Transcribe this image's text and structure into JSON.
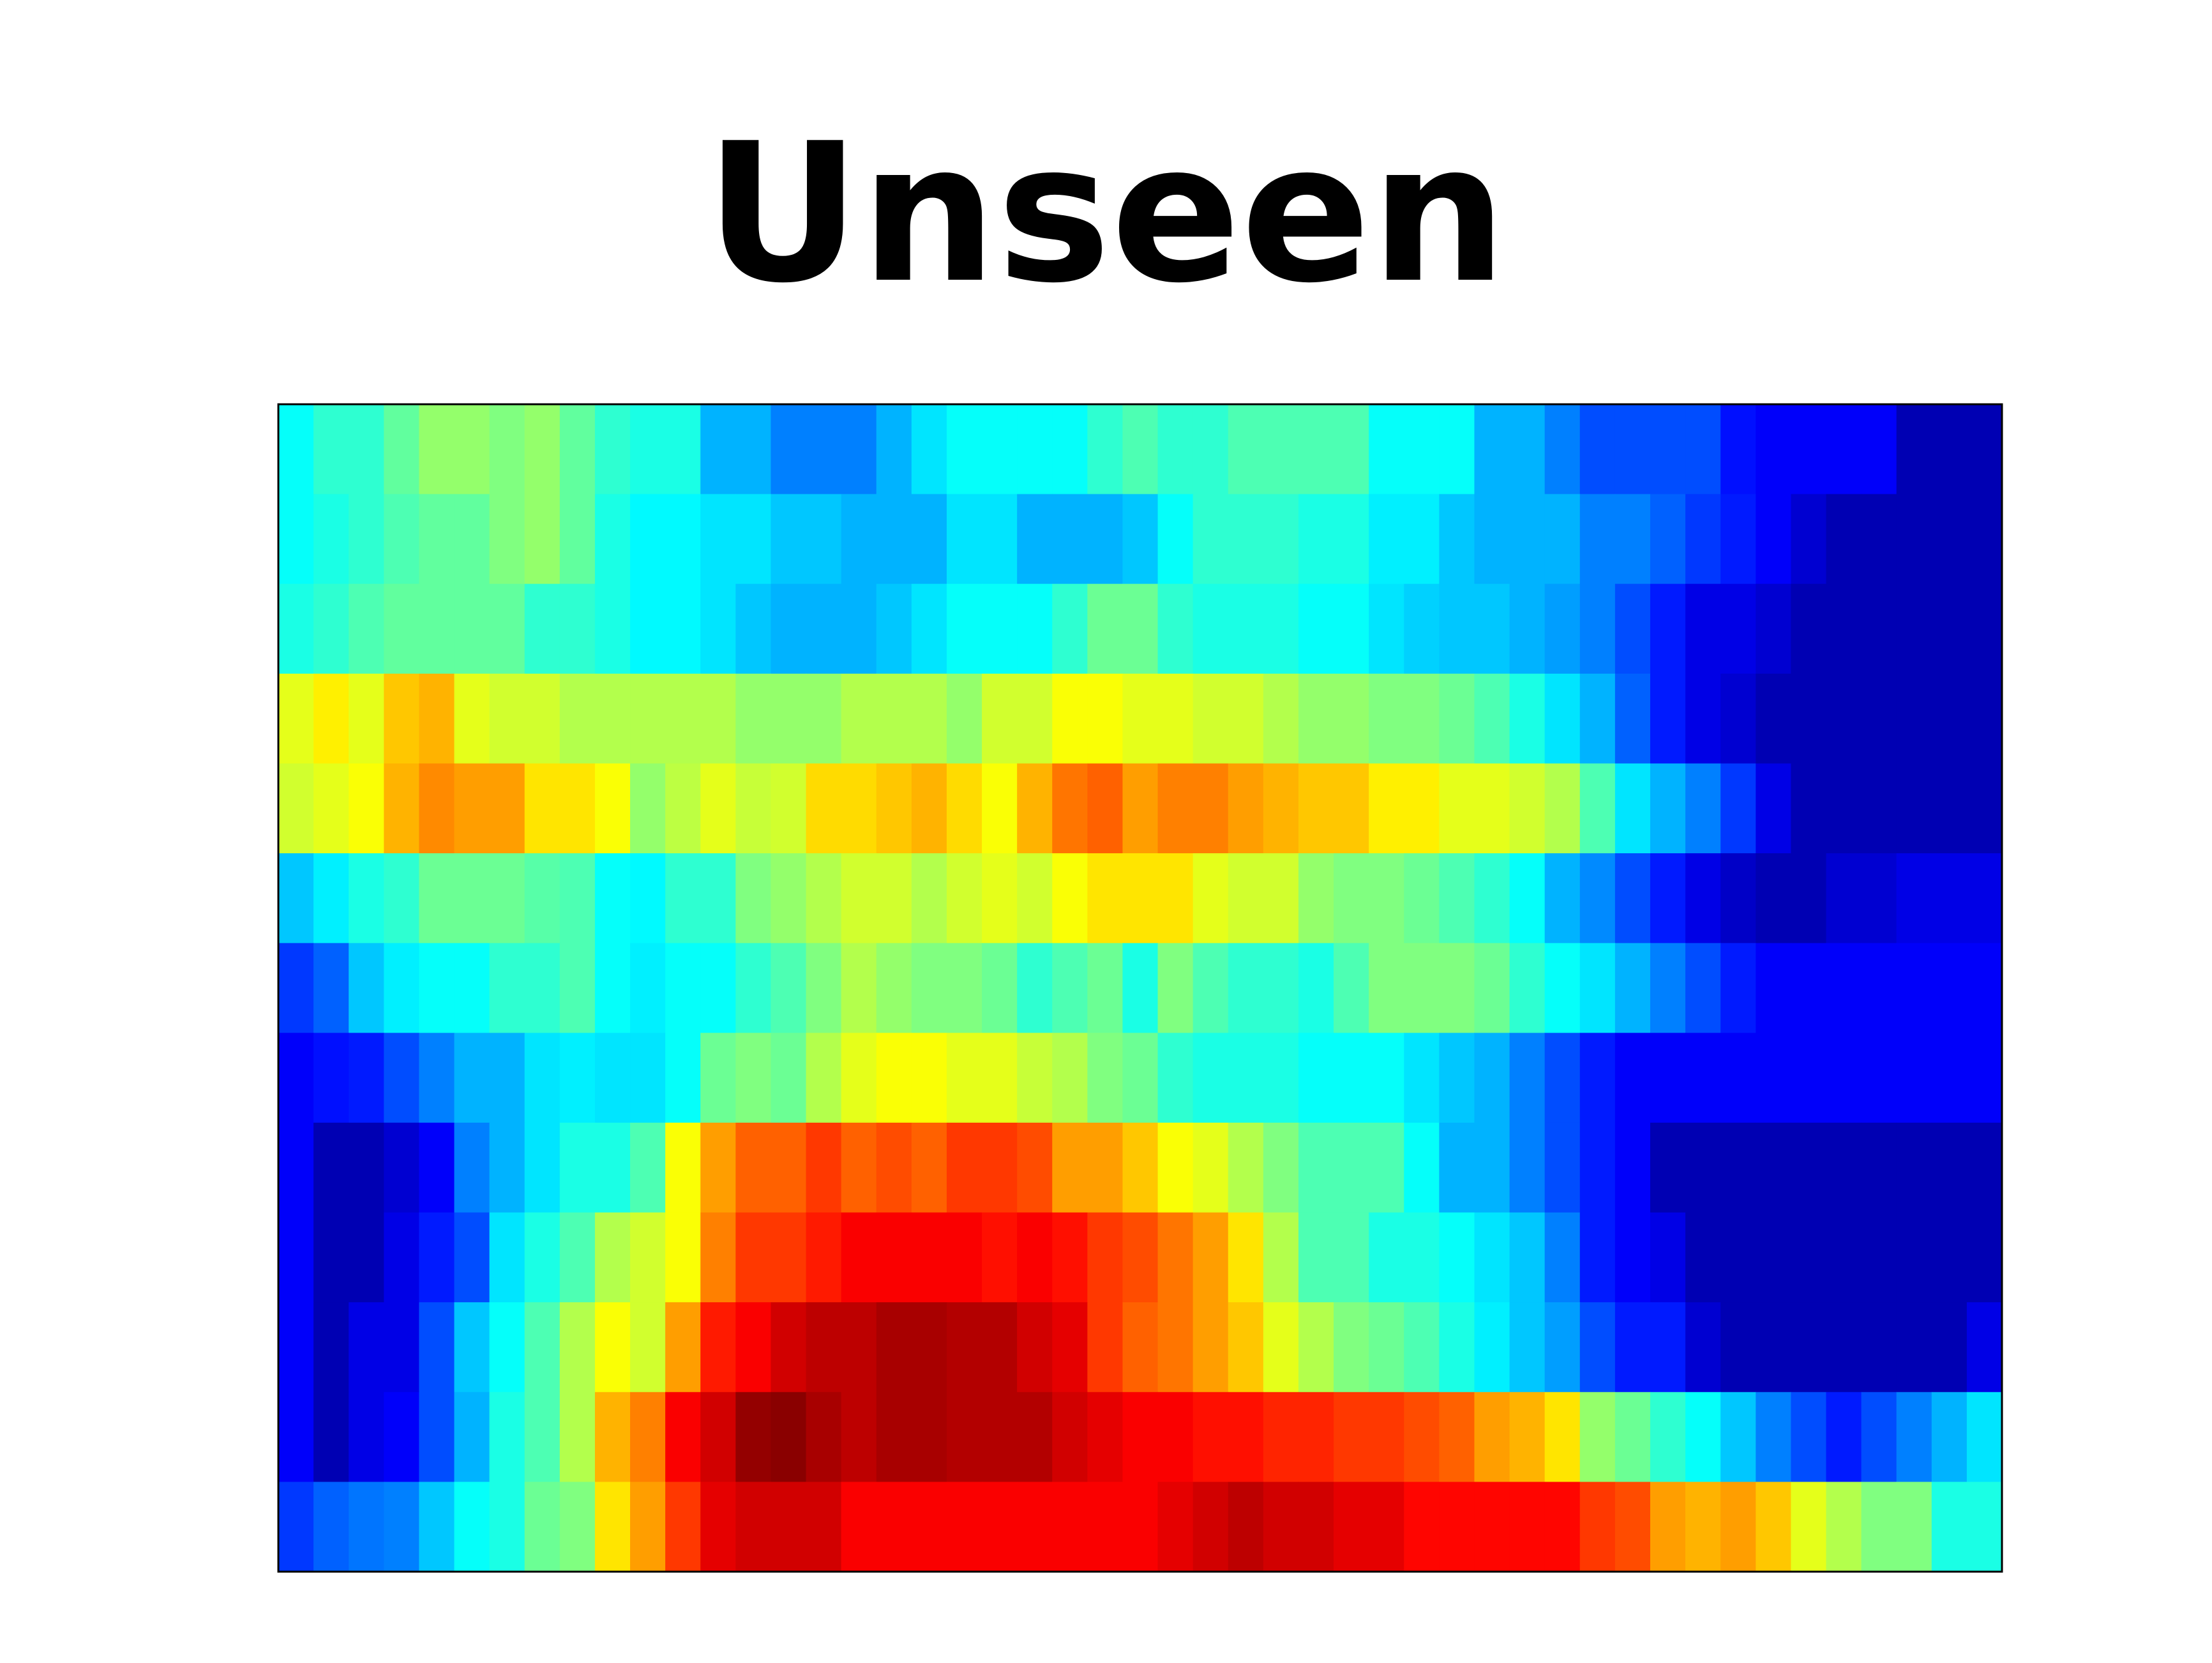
{
  "title": "Unseen",
  "chart_data": {
    "type": "heatmap",
    "title": "Unseen",
    "xlabel": "",
    "ylabel": "",
    "colormap": "jet",
    "value_range": [
      0,
      1
    ],
    "axis_ticks": false,
    "grid": false,
    "legend": "none",
    "rows": 13,
    "cols": 49,
    "values": [
      [
        0.38,
        0.42,
        0.42,
        0.47,
        0.52,
        0.52,
        0.5,
        0.52,
        0.47,
        0.42,
        0.4,
        0.4,
        0.3,
        0.3,
        0.25,
        0.25,
        0.25,
        0.3,
        0.35,
        0.38,
        0.38,
        0.38,
        0.38,
        0.42,
        0.45,
        0.42,
        0.42,
        0.45,
        0.45,
        0.45,
        0.45,
        0.38,
        0.38,
        0.38,
        0.3,
        0.3,
        0.25,
        0.2,
        0.2,
        0.2,
        0.2,
        0.14,
        0.12,
        0.12,
        0.12,
        0.12,
        0.05,
        0.05,
        0.05
      ],
      [
        0.38,
        0.4,
        0.42,
        0.45,
        0.47,
        0.47,
        0.5,
        0.52,
        0.47,
        0.4,
        0.37,
        0.37,
        0.35,
        0.35,
        0.32,
        0.32,
        0.3,
        0.3,
        0.3,
        0.35,
        0.35,
        0.3,
        0.3,
        0.3,
        0.32,
        0.38,
        0.42,
        0.42,
        0.42,
        0.4,
        0.4,
        0.36,
        0.36,
        0.32,
        0.3,
        0.3,
        0.3,
        0.25,
        0.25,
        0.22,
        0.18,
        0.15,
        0.12,
        0.08,
        0.05,
        0.05,
        0.05,
        0.05,
        0.05
      ],
      [
        0.4,
        0.42,
        0.45,
        0.47,
        0.47,
        0.47,
        0.47,
        0.42,
        0.42,
        0.4,
        0.37,
        0.37,
        0.35,
        0.32,
        0.3,
        0.3,
        0.3,
        0.32,
        0.35,
        0.38,
        0.38,
        0.38,
        0.42,
        0.48,
        0.48,
        0.42,
        0.4,
        0.4,
        0.4,
        0.38,
        0.38,
        0.35,
        0.33,
        0.32,
        0.32,
        0.3,
        0.28,
        0.25,
        0.2,
        0.15,
        0.1,
        0.1,
        0.08,
        0.05,
        0.05,
        0.05,
        0.05,
        0.05,
        0.05
      ],
      [
        0.6,
        0.64,
        0.6,
        0.68,
        0.7,
        0.6,
        0.58,
        0.58,
        0.55,
        0.55,
        0.55,
        0.55,
        0.55,
        0.52,
        0.52,
        0.52,
        0.55,
        0.55,
        0.55,
        0.52,
        0.58,
        0.58,
        0.62,
        0.62,
        0.6,
        0.6,
        0.58,
        0.58,
        0.55,
        0.52,
        0.52,
        0.5,
        0.5,
        0.48,
        0.45,
        0.4,
        0.35,
        0.3,
        0.22,
        0.15,
        0.1,
        0.08,
        0.05,
        0.05,
        0.05,
        0.05,
        0.05,
        0.05,
        0.05
      ],
      [
        0.58,
        0.6,
        0.62,
        0.7,
        0.74,
        0.72,
        0.72,
        0.65,
        0.65,
        0.62,
        0.52,
        0.56,
        0.6,
        0.57,
        0.58,
        0.66,
        0.66,
        0.68,
        0.7,
        0.66,
        0.62,
        0.7,
        0.76,
        0.78,
        0.72,
        0.75,
        0.75,
        0.72,
        0.7,
        0.68,
        0.68,
        0.64,
        0.64,
        0.6,
        0.6,
        0.58,
        0.55,
        0.45,
        0.35,
        0.3,
        0.25,
        0.18,
        0.1,
        0.05,
        0.05,
        0.05,
        0.05,
        0.05,
        0.05
      ],
      [
        0.32,
        0.36,
        0.4,
        0.42,
        0.48,
        0.48,
        0.48,
        0.46,
        0.45,
        0.38,
        0.37,
        0.42,
        0.42,
        0.5,
        0.52,
        0.55,
        0.58,
        0.58,
        0.55,
        0.58,
        0.6,
        0.58,
        0.62,
        0.65,
        0.65,
        0.65,
        0.6,
        0.58,
        0.58,
        0.52,
        0.5,
        0.5,
        0.48,
        0.45,
        0.42,
        0.38,
        0.3,
        0.26,
        0.2,
        0.15,
        0.1,
        0.07,
        0.05,
        0.05,
        0.08,
        0.08,
        0.1,
        0.1,
        0.1
      ],
      [
        0.18,
        0.22,
        0.32,
        0.36,
        0.38,
        0.38,
        0.42,
        0.42,
        0.45,
        0.38,
        0.36,
        0.38,
        0.38,
        0.42,
        0.45,
        0.5,
        0.55,
        0.52,
        0.5,
        0.5,
        0.48,
        0.42,
        0.45,
        0.48,
        0.4,
        0.5,
        0.45,
        0.42,
        0.42,
        0.4,
        0.45,
        0.5,
        0.5,
        0.5,
        0.48,
        0.42,
        0.38,
        0.35,
        0.3,
        0.25,
        0.2,
        0.15,
        0.12,
        0.12,
        0.12,
        0.12,
        0.12,
        0.12,
        0.12
      ],
      [
        0.12,
        0.14,
        0.15,
        0.2,
        0.25,
        0.3,
        0.3,
        0.35,
        0.36,
        0.35,
        0.35,
        0.38,
        0.48,
        0.5,
        0.48,
        0.55,
        0.6,
        0.62,
        0.62,
        0.6,
        0.6,
        0.57,
        0.55,
        0.5,
        0.48,
        0.42,
        0.4,
        0.4,
        0.4,
        0.38,
        0.38,
        0.38,
        0.35,
        0.32,
        0.3,
        0.25,
        0.2,
        0.15,
        0.12,
        0.12,
        0.12,
        0.12,
        0.12,
        0.12,
        0.12,
        0.12,
        0.12,
        0.12,
        0.12
      ],
      [
        0.12,
        0.05,
        0.05,
        0.08,
        0.12,
        0.25,
        0.3,
        0.35,
        0.4,
        0.4,
        0.45,
        0.62,
        0.72,
        0.78,
        0.78,
        0.82,
        0.78,
        0.8,
        0.78,
        0.82,
        0.82,
        0.8,
        0.72,
        0.72,
        0.68,
        0.62,
        0.6,
        0.55,
        0.5,
        0.45,
        0.45,
        0.45,
        0.38,
        0.3,
        0.3,
        0.25,
        0.2,
        0.15,
        0.12,
        0.05,
        0.05,
        0.05,
        0.05,
        0.05,
        0.05,
        0.05,
        0.05,
        0.05,
        0.05
      ],
      [
        0.12,
        0.05,
        0.05,
        0.1,
        0.15,
        0.2,
        0.35,
        0.4,
        0.45,
        0.55,
        0.58,
        0.62,
        0.75,
        0.82,
        0.82,
        0.85,
        0.88,
        0.88,
        0.88,
        0.88,
        0.86,
        0.88,
        0.86,
        0.82,
        0.8,
        0.76,
        0.72,
        0.65,
        0.55,
        0.45,
        0.45,
        0.4,
        0.4,
        0.38,
        0.35,
        0.32,
        0.25,
        0.15,
        0.12,
        0.1,
        0.05,
        0.05,
        0.05,
        0.05,
        0.05,
        0.05,
        0.05,
        0.05,
        0.05
      ],
      [
        0.12,
        0.05,
        0.1,
        0.1,
        0.2,
        0.32,
        0.38,
        0.45,
        0.55,
        0.62,
        0.58,
        0.72,
        0.85,
        0.88,
        0.92,
        0.94,
        0.94,
        0.96,
        0.96,
        0.95,
        0.95,
        0.92,
        0.9,
        0.82,
        0.78,
        0.76,
        0.72,
        0.68,
        0.6,
        0.55,
        0.5,
        0.48,
        0.45,
        0.4,
        0.36,
        0.32,
        0.28,
        0.2,
        0.15,
        0.15,
        0.08,
        0.05,
        0.05,
        0.05,
        0.05,
        0.05,
        0.05,
        0.05,
        0.1
      ],
      [
        0.12,
        0.05,
        0.1,
        0.12,
        0.2,
        0.3,
        0.4,
        0.45,
        0.55,
        0.7,
        0.75,
        0.88,
        0.92,
        0.98,
        0.99,
        0.96,
        0.94,
        0.96,
        0.96,
        0.95,
        0.95,
        0.95,
        0.92,
        0.9,
        0.88,
        0.88,
        0.86,
        0.86,
        0.84,
        0.84,
        0.82,
        0.82,
        0.8,
        0.78,
        0.72,
        0.7,
        0.65,
        0.52,
        0.48,
        0.42,
        0.38,
        0.32,
        0.25,
        0.2,
        0.15,
        0.2,
        0.25,
        0.3,
        0.35
      ],
      [
        0.18,
        0.22,
        0.24,
        0.25,
        0.32,
        0.38,
        0.4,
        0.48,
        0.5,
        0.65,
        0.72,
        0.82,
        0.9,
        0.92,
        0.92,
        0.92,
        0.88,
        0.88,
        0.88,
        0.88,
        0.88,
        0.88,
        0.88,
        0.88,
        0.88,
        0.9,
        0.92,
        0.94,
        0.92,
        0.92,
        0.9,
        0.9,
        0.87,
        0.87,
        0.87,
        0.87,
        0.87,
        0.82,
        0.8,
        0.72,
        0.7,
        0.72,
        0.68,
        0.6,
        0.55,
        0.5,
        0.5,
        0.4,
        0.4
      ]
    ]
  }
}
